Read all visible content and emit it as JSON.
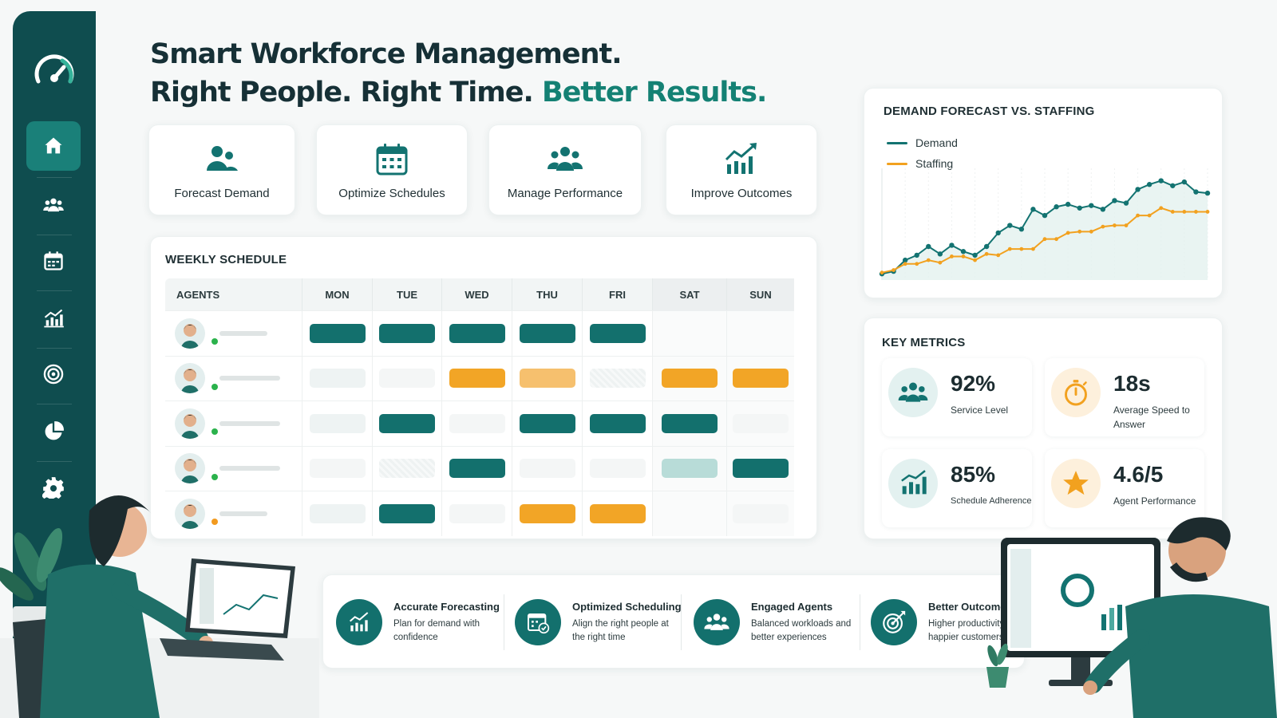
{
  "headline": {
    "line1": "Smart Workforce Management.",
    "line2_prefix": "Right People. Right Time. ",
    "line2_accent": "Better Results."
  },
  "sidebar": {
    "items": [
      {
        "name": "home",
        "icon": "home-icon",
        "active": true
      },
      {
        "name": "team",
        "icon": "people-icon"
      },
      {
        "name": "calendar",
        "icon": "calendar-icon"
      },
      {
        "name": "analytics",
        "icon": "bar-chart-icon"
      },
      {
        "name": "goals",
        "icon": "target-icon"
      },
      {
        "name": "reports",
        "icon": "pie-chart-icon"
      },
      {
        "name": "settings",
        "icon": "gear-icon"
      }
    ]
  },
  "features": [
    {
      "label": "Forecast Demand",
      "icon": "people-icon"
    },
    {
      "label": "Optimize Schedules",
      "icon": "calendar-icon"
    },
    {
      "label": "Manage Performance",
      "icon": "team-icon"
    },
    {
      "label": "Improve Outcomes",
      "icon": "growth-chart-icon"
    }
  ],
  "schedule": {
    "title": "WEEKLY SCHEDULE",
    "columns": [
      "AGENTS",
      "MON",
      "TUE",
      "WED",
      "THU",
      "FRI",
      "SAT",
      "SUN"
    ],
    "rows": [
      {
        "status": "online",
        "shifts": [
          "teal",
          "teal",
          "teal",
          "teal",
          "teal",
          "none",
          "none"
        ]
      },
      {
        "status": "online",
        "shifts": [
          "ghost",
          "faint",
          "orange",
          "lightorange",
          "hatch",
          "orange",
          "orange"
        ]
      },
      {
        "status": "online",
        "shifts": [
          "ghost",
          "teal",
          "faint",
          "teal",
          "teal",
          "teal",
          "faint"
        ]
      },
      {
        "status": "online",
        "shifts": [
          "faint",
          "hatch",
          "teal",
          "faint",
          "faint",
          "mint",
          "teal"
        ]
      },
      {
        "status": "away",
        "shifts": [
          "ghost",
          "teal",
          "faint",
          "orange",
          "orange",
          "none",
          "faint"
        ]
      }
    ],
    "colors": {
      "online": "#2bb24c",
      "away": "#f29a1f",
      "teal": "#13706d",
      "orange": "#f2a526"
    }
  },
  "chart_data": {
    "type": "line",
    "title": "DEMAND FORECAST VS. STAFFING",
    "legend_position": "top-left",
    "grid": true,
    "x": [
      1,
      2,
      3,
      4,
      5,
      6,
      7,
      8,
      9,
      10,
      11,
      12,
      13,
      14,
      15,
      16,
      17,
      18,
      19,
      20,
      21,
      22,
      23,
      24,
      25,
      26,
      27,
      28,
      29
    ],
    "series": [
      {
        "name": "Demand",
        "color": "#137371",
        "values": [
          5,
          7,
          16,
          20,
          27,
          21,
          28,
          23,
          20,
          27,
          38,
          44,
          41,
          57,
          52,
          59,
          61,
          58,
          60,
          57,
          64,
          62,
          73,
          77,
          80,
          76,
          79,
          71,
          70
        ]
      },
      {
        "name": "Staffing",
        "color": "#f2a11f",
        "values": [
          6,
          8,
          13,
          13,
          16,
          14,
          19,
          19,
          16,
          21,
          20,
          25,
          25,
          25,
          33,
          33,
          38,
          39,
          39,
          43,
          44,
          44,
          52,
          52,
          58,
          55,
          55,
          55,
          55
        ]
      }
    ],
    "ylim": [
      0,
      90
    ]
  },
  "metrics": {
    "title": "KEY METRICS",
    "items": [
      {
        "value": "92%",
        "label": "Service Level",
        "icon": "people-icon"
      },
      {
        "value": "18s",
        "label": "Average Speed to Answer",
        "icon": "stopwatch-icon"
      },
      {
        "value": "85%",
        "label": "Schedule Adherence",
        "icon": "bar-chart-icon"
      },
      {
        "value": "4.6/5",
        "label": "Agent Performance",
        "icon": "star-icon"
      }
    ]
  },
  "benefits": [
    {
      "title": "Accurate Forecasting",
      "desc": "Plan for demand with confidence",
      "icon": "growth-chart-icon"
    },
    {
      "title": "Optimized Scheduling",
      "desc": "Align the right people at the right time",
      "icon": "calendar-check-icon"
    },
    {
      "title": "Engaged Agents",
      "desc": "Balanced workloads and better experiences",
      "icon": "team-icon"
    },
    {
      "title": "Better Outcomes",
      "desc": "Higher productivity and happier customers",
      "icon": "target-icon"
    }
  ]
}
